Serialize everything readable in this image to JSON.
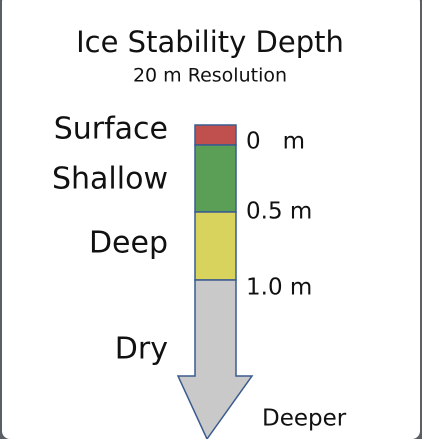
{
  "legend": {
    "title": "Ice Stability Depth",
    "subtitle": "20 m Resolution",
    "classes": [
      {
        "label": "Surface",
        "color": "#c0504d"
      },
      {
        "label": "Shallow",
        "color": "#5b9e55"
      },
      {
        "label": "Deep",
        "color": "#d8d35c"
      },
      {
        "label": "Dry",
        "color": "#c9c9c9"
      }
    ],
    "depth_labels": [
      "0   m",
      "0.5 m",
      "1.0 m",
      "Deeper"
    ]
  }
}
